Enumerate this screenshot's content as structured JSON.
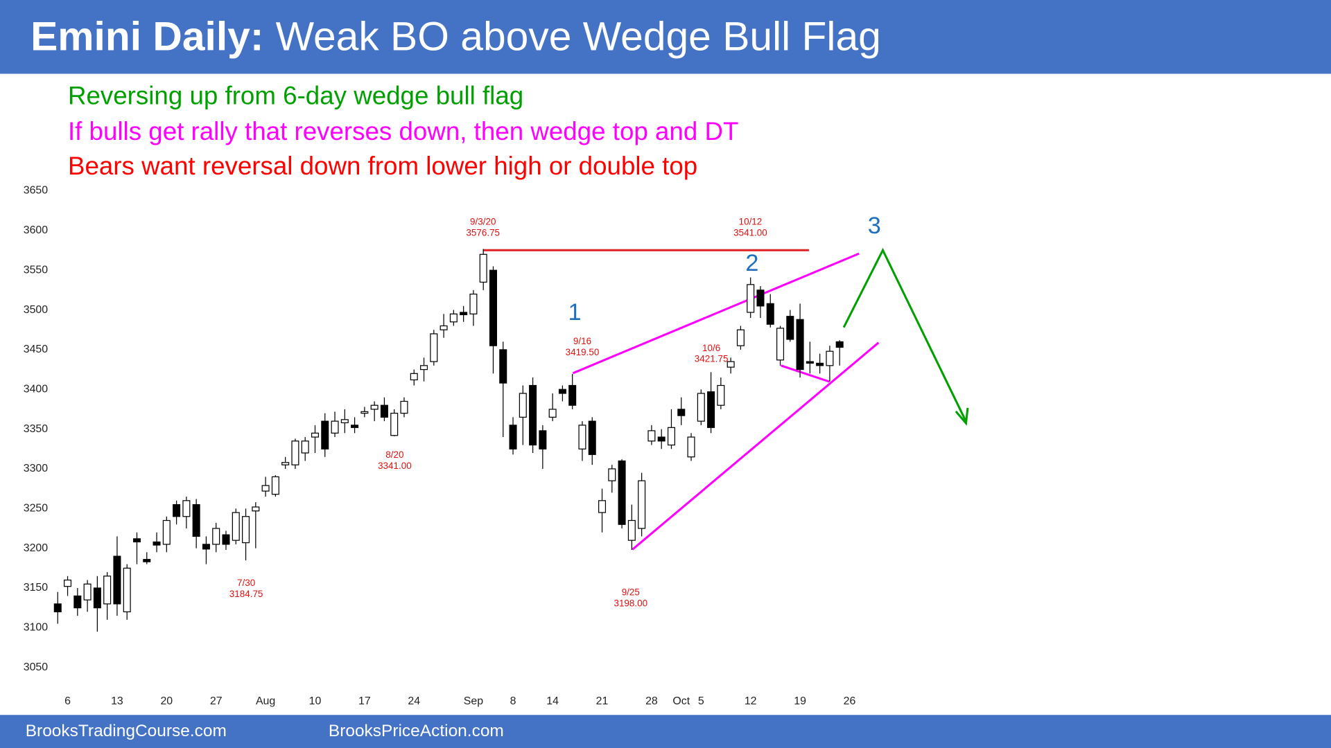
{
  "chart_data": {
    "type": "candlestick",
    "title": "Emini Daily:",
    "subtitle": "Weak BO above Wedge Bull Flag",
    "notes": [
      {
        "text": "Reversing up from 6-day wedge bull flag",
        "color": "#00a000"
      },
      {
        "text": "If bulls get rally that reverses down, then wedge top and DT",
        "color": "#ff00ff"
      },
      {
        "text": "Bears want reversal down from lower high or double top",
        "color": "#ff0000"
      }
    ],
    "categories": [
      null,
      "6",
      null,
      null,
      null,
      null,
      "13",
      null,
      null,
      null,
      null,
      "20",
      null,
      null,
      null,
      null,
      "27",
      null,
      null,
      null,
      null,
      "Aug",
      null,
      null,
      null,
      null,
      "10",
      null,
      null,
      null,
      null,
      "17",
      null,
      null,
      null,
      null,
      "24",
      null,
      null,
      null,
      null,
      null,
      "Sep",
      null,
      null,
      null,
      "8",
      null,
      null,
      null,
      "14",
      null,
      null,
      null,
      null,
      "21",
      null,
      null,
      null,
      null,
      "28",
      null,
      null,
      "Oct",
      null,
      "5",
      null,
      null,
      null,
      null,
      "12",
      null,
      null,
      null,
      null,
      "19",
      null,
      null,
      null,
      null,
      "26"
    ],
    "open": [
      3130,
      3152,
      3140,
      3135,
      3150,
      3130,
      3190,
      3120,
      3212,
      3186,
      3208,
      3205,
      3255,
      3240,
      3255,
      3205,
      3205,
      3217,
      3210,
      3207,
      3247,
      3272,
      3268,
      3305,
      3305,
      3320,
      3340,
      3360,
      3345,
      3358,
      3355,
      3370,
      3375,
      3380,
      3342,
      3370,
      3412,
      3425,
      3435,
      3475,
      3485,
      3497,
      3495,
      3535,
      3550,
      3450,
      3355,
      3365,
      3405,
      3348,
      3365,
      3400,
      3405,
      3325,
      3360,
      3245,
      3285,
      3310,
      3210,
      3225,
      3335,
      3340,
      3330,
      3375,
      3315,
      3360,
      3397,
      3380,
      3428,
      3455,
      3497,
      3525,
      3508,
      3437,
      3492,
      3488,
      3435,
      3433,
      3430,
      3460,
      null
    ],
    "high": [
      3145,
      3165,
      3150,
      3160,
      3165,
      3170,
      3215,
      3180,
      3220,
      3195,
      3220,
      3240,
      3260,
      3265,
      3262,
      3215,
      3232,
      3222,
      3250,
      3250,
      3258,
      3290,
      3292,
      3315,
      3338,
      3340,
      3355,
      3370,
      3372,
      3375,
      3365,
      3378,
      3385,
      3390,
      3375,
      3390,
      3425,
      3440,
      3475,
      3495,
      3500,
      3505,
      3525,
      3576.75,
      3555,
      3460,
      3365,
      3405,
      3415,
      3355,
      3395,
      3405,
      3419.5,
      3360,
      3365,
      3275,
      3305,
      3312,
      3255,
      3295,
      3355,
      3350,
      3375,
      3390,
      3345,
      3400,
      3421.75,
      3415,
      3440,
      3480,
      3541,
      3530,
      3520,
      3480,
      3500,
      3508,
      3460,
      3445,
      3455,
      3462,
      null
    ],
    "low": [
      3105,
      3140,
      3115,
      3120,
      3095,
      3110,
      3115,
      3110,
      3180,
      3180,
      3195,
      3195,
      3230,
      3225,
      3200,
      3180,
      3195,
      3198,
      3205,
      3184.75,
      3200,
      3265,
      3265,
      3300,
      3300,
      3310,
      3320,
      3315,
      3340,
      3345,
      3345,
      3365,
      3360,
      3360,
      3341,
      3365,
      3405,
      3410,
      3430,
      3465,
      3480,
      3485,
      3480,
      3525,
      3420,
      3340,
      3318,
      3330,
      3320,
      3300,
      3360,
      3385,
      3375,
      3310,
      3305,
      3220,
      3270,
      3225,
      3198,
      3215,
      3330,
      3325,
      3325,
      3355,
      3310,
      3355,
      3345,
      3375,
      3420,
      3450,
      3490,
      3490,
      3478,
      3430,
      3460,
      3415,
      3420,
      3420,
      3410,
      3430,
      null
    ],
    "close": [
      3120,
      3160,
      3125,
      3155,
      3125,
      3165,
      3130,
      3175,
      3208,
      3183,
      3204,
      3235,
      3240,
      3260,
      3215,
      3199,
      3225,
      3205,
      3245,
      3240,
      3252,
      3279,
      3290,
      3308,
      3335,
      3335,
      3345,
      3325,
      3360,
      3362,
      3352,
      3372,
      3380,
      3365,
      3370,
      3385,
      3420,
      3430,
      3470,
      3480,
      3495,
      3494,
      3520,
      3570,
      3455,
      3408,
      3325,
      3395,
      3330,
      3325,
      3375,
      3395,
      3380,
      3355,
      3318,
      3260,
      3300,
      3230,
      3235,
      3285,
      3348,
      3335,
      3352,
      3367,
      3340,
      3395,
      3352,
      3405,
      3435,
      3475,
      3532,
      3505,
      3482,
      3477,
      3463,
      3425,
      3433,
      3430,
      3448,
      3453,
      null
    ],
    "up_color": "#ffffff",
    "down_color": "#000000",
    "ylim": [
      3050,
      3650
    ],
    "yticks": [
      3050,
      3100,
      3150,
      3200,
      3250,
      3300,
      3350,
      3400,
      3450,
      3500,
      3550,
      3600,
      3650
    ],
    "grid": false,
    "annotations": [
      {
        "date": "9/3/20",
        "price": "3576.75"
      },
      {
        "date": "10/12",
        "price": "3541.00"
      },
      {
        "date": "9/16",
        "price": "3419.50"
      },
      {
        "date": "10/6",
        "price": "3421.75"
      },
      {
        "date": "8/20",
        "price": "3341.00"
      },
      {
        "date": "7/30",
        "price": "3184.75"
      },
      {
        "date": "9/25",
        "price": "3198.00"
      }
    ],
    "wave_labels": [
      "1",
      "2",
      "3"
    ],
    "footer": [
      "BrooksTradingCourse.com",
      "BrooksPriceAction.com"
    ]
  }
}
